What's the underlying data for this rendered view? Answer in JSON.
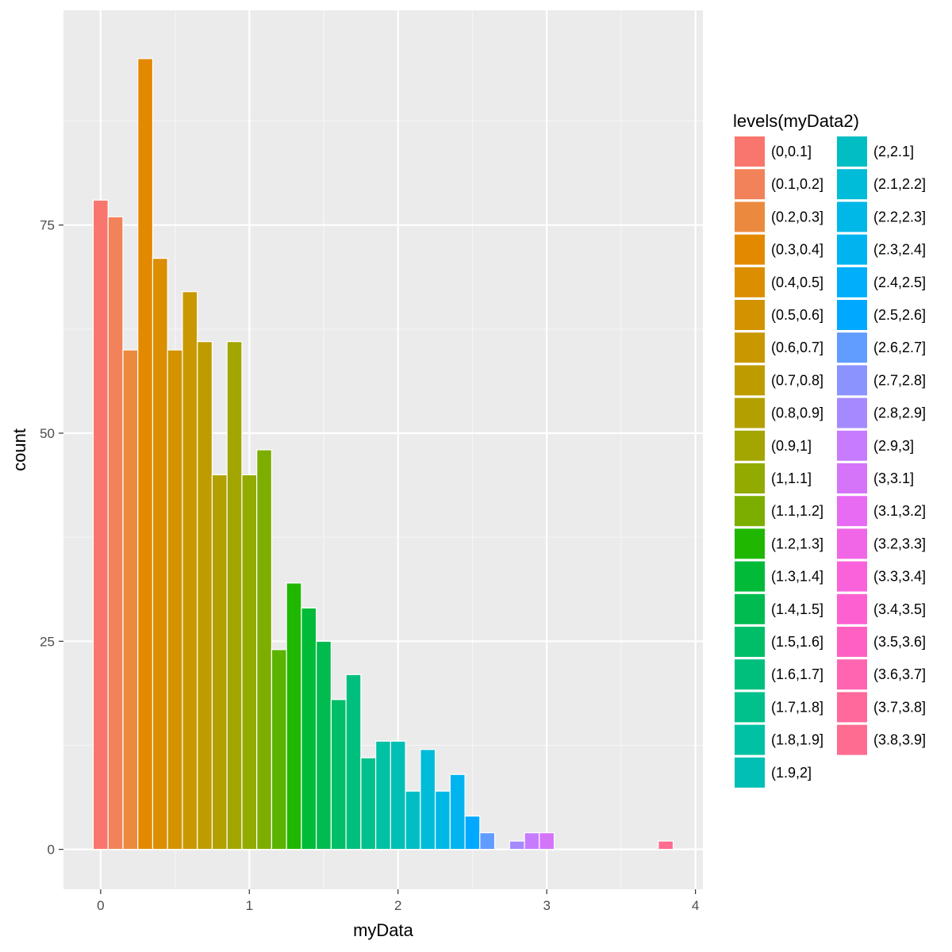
{
  "chart_data": {
    "type": "bar",
    "title": "",
    "xlabel": "myData",
    "ylabel": "count",
    "xlim": [
      -0.25,
      4.05
    ],
    "ylim": [
      -4.8,
      100.8
    ],
    "x_ticks": [
      0,
      1,
      2,
      3,
      4
    ],
    "x_tick_labels": [
      "0",
      "1",
      "2",
      "3",
      "4"
    ],
    "y_ticks": [
      0,
      25,
      50,
      75
    ],
    "y_tick_labels": [
      "0",
      "25",
      "50",
      "75"
    ],
    "grid": true,
    "bin_width": 0.1,
    "bins": [
      {
        "center": 0.0,
        "count": 78,
        "fill": "#F8766D"
      },
      {
        "center": 0.1,
        "count": 76,
        "fill": "#F2825A"
      },
      {
        "center": 0.2,
        "count": 60,
        "fill": "#EB8A3E"
      },
      {
        "center": 0.3,
        "count": 95,
        "fill": "#E38900"
      },
      {
        "center": 0.4,
        "count": 71,
        "fill": "#DB8E00"
      },
      {
        "center": 0.5,
        "count": 60,
        "fill": "#D39200"
      },
      {
        "center": 0.6,
        "count": 67,
        "fill": "#C99800"
      },
      {
        "center": 0.7,
        "count": 61,
        "fill": "#BE9C00"
      },
      {
        "center": 0.8,
        "count": 45,
        "fill": "#B3A000"
      },
      {
        "center": 0.9,
        "count": 61,
        "fill": "#A3A500"
      },
      {
        "center": 1.0,
        "count": 45,
        "fill": "#93AA00"
      },
      {
        "center": 1.1,
        "count": 48,
        "fill": "#7CAE00"
      },
      {
        "center": 1.2,
        "count": 24,
        "fill": "#5BB300"
      },
      {
        "center": 1.3,
        "count": 32,
        "fill": "#1FB700"
      },
      {
        "center": 1.4,
        "count": 29,
        "fill": "#00BA38"
      },
      {
        "center": 1.5,
        "count": 25,
        "fill": "#00BB4E"
      },
      {
        "center": 1.6,
        "count": 18,
        "fill": "#00BE67"
      },
      {
        "center": 1.7,
        "count": 21,
        "fill": "#00BF7D"
      },
      {
        "center": 1.8,
        "count": 11,
        "fill": "#00C08B"
      },
      {
        "center": 1.9,
        "count": 13,
        "fill": "#00C1A3"
      },
      {
        "center": 2.0,
        "count": 13,
        "fill": "#00BFB4"
      },
      {
        "center": 2.1,
        "count": 7,
        "fill": "#00BEC4"
      },
      {
        "center": 2.2,
        "count": 12,
        "fill": "#00BCD8"
      },
      {
        "center": 2.3,
        "count": 7,
        "fill": "#00B8E7"
      },
      {
        "center": 2.4,
        "count": 9,
        "fill": "#00B4F0"
      },
      {
        "center": 2.5,
        "count": 4,
        "fill": "#00A9FF"
      },
      {
        "center": 2.6,
        "count": 2,
        "fill": "#619CFF"
      },
      {
        "center": 2.7,
        "count": 0,
        "fill": "#8B93FF"
      },
      {
        "center": 2.8,
        "count": 1,
        "fill": "#A58AFF"
      },
      {
        "center": 2.9,
        "count": 2,
        "fill": "#C77CFF"
      },
      {
        "center": 3.0,
        "count": 2,
        "fill": "#D574F9"
      },
      {
        "center": 3.1,
        "count": 0,
        "fill": "#E76BF3"
      },
      {
        "center": 3.2,
        "count": 0,
        "fill": "#F066E6"
      },
      {
        "center": 3.3,
        "count": 0,
        "fill": "#FA62DB"
      },
      {
        "center": 3.4,
        "count": 0,
        "fill": "#FD61D1"
      },
      {
        "center": 3.5,
        "count": 0,
        "fill": "#FF61C3"
      },
      {
        "center": 3.6,
        "count": 0,
        "fill": "#FF65B0"
      },
      {
        "center": 3.7,
        "count": 0,
        "fill": "#FF699C"
      },
      {
        "center": 3.8,
        "count": 1,
        "fill": "#FF6C91"
      }
    ],
    "legend": {
      "title": "levels(myData2)",
      "placement": "right",
      "columns": 2,
      "entries": [
        {
          "label": "(0,0.1]",
          "color": "#F8766D"
        },
        {
          "label": "(0.1,0.2]",
          "color": "#F2825A"
        },
        {
          "label": "(0.2,0.3]",
          "color": "#EB8A3E"
        },
        {
          "label": "(0.3,0.4]",
          "color": "#E38900"
        },
        {
          "label": "(0.4,0.5]",
          "color": "#DB8E00"
        },
        {
          "label": "(0.5,0.6]",
          "color": "#D39200"
        },
        {
          "label": "(0.6,0.7]",
          "color": "#C99800"
        },
        {
          "label": "(0.7,0.8]",
          "color": "#BE9C00"
        },
        {
          "label": "(0.8,0.9]",
          "color": "#B3A000"
        },
        {
          "label": "(0.9,1]",
          "color": "#A3A500"
        },
        {
          "label": "(1,1.1]",
          "color": "#93AA00"
        },
        {
          "label": "(1.1,1.2]",
          "color": "#7CAE00"
        },
        {
          "label": "(1.2,1.3]",
          "color": "#1FB700"
        },
        {
          "label": "(1.3,1.4]",
          "color": "#00BA38"
        },
        {
          "label": "(1.4,1.5]",
          "color": "#00BB4E"
        },
        {
          "label": "(1.5,1.6]",
          "color": "#00BE67"
        },
        {
          "label": "(1.6,1.7]",
          "color": "#00BF7D"
        },
        {
          "label": "(1.7,1.8]",
          "color": "#00C08B"
        },
        {
          "label": "(1.8,1.9]",
          "color": "#00C1A3"
        },
        {
          "label": "(1.9,2]",
          "color": "#00BFB4"
        },
        {
          "label": "(2,2.1]",
          "color": "#00BEC4"
        },
        {
          "label": "(2.1,2.2]",
          "color": "#00BCD8"
        },
        {
          "label": "(2.2,2.3]",
          "color": "#00B8E7"
        },
        {
          "label": "(2.3,2.4]",
          "color": "#00B4F0"
        },
        {
          "label": "(2.4,2.5]",
          "color": "#00AEFA"
        },
        {
          "label": "(2.5,2.6]",
          "color": "#00A9FF"
        },
        {
          "label": "(2.6,2.7]",
          "color": "#619CFF"
        },
        {
          "label": "(2.7,2.8]",
          "color": "#8B93FF"
        },
        {
          "label": "(2.8,2.9]",
          "color": "#A58AFF"
        },
        {
          "label": "(2.9,3]",
          "color": "#C77CFF"
        },
        {
          "label": "(3,3.1]",
          "color": "#D574F9"
        },
        {
          "label": "(3.1,3.2]",
          "color": "#E76BF3"
        },
        {
          "label": "(3.2,3.3]",
          "color": "#F066E6"
        },
        {
          "label": "(3.3,3.4]",
          "color": "#FA62DB"
        },
        {
          "label": "(3.4,3.5]",
          "color": "#FD61D1"
        },
        {
          "label": "(3.5,3.6]",
          "color": "#FF61C3"
        },
        {
          "label": "(3.6,3.7]",
          "color": "#FF65B0"
        },
        {
          "label": "(3.7,3.8]",
          "color": "#FF699C"
        },
        {
          "label": "(3.8,3.9]",
          "color": "#FF6C91"
        }
      ]
    },
    "colors": {
      "panel_background": "#EBEBEB",
      "grid_major": "#FFFFFF",
      "grid_minor": "#F5F5F5",
      "bar_outline": "#FFFFFF"
    }
  }
}
